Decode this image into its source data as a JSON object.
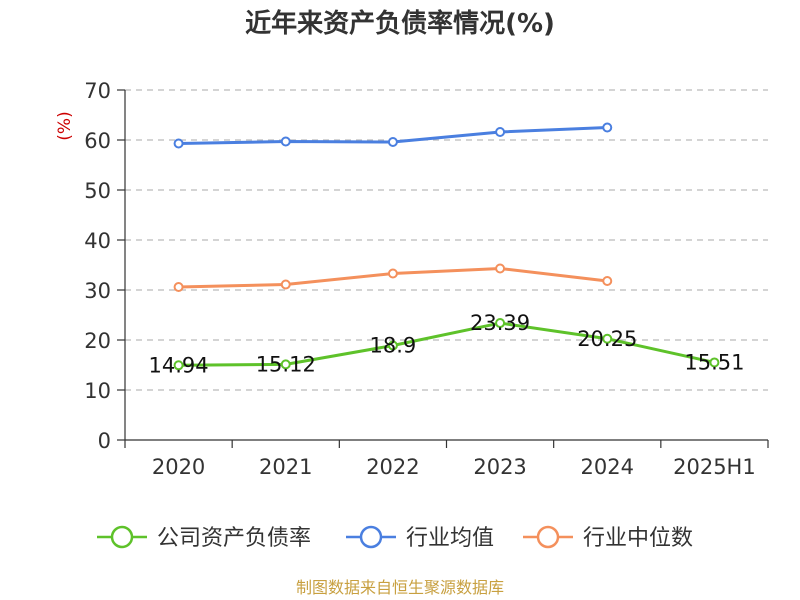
{
  "chart_data": {
    "type": "line",
    "title": "近年来资产负债率情况(%)",
    "ylabel": "(%)",
    "xlabel": "",
    "categories": [
      "2020",
      "2021",
      "2022",
      "2023",
      "2024",
      "2025H1"
    ],
    "ylim": [
      0,
      70
    ],
    "yticks": [
      0,
      10,
      20,
      30,
      40,
      50,
      60,
      70
    ],
    "grid": "horizontal-dashed",
    "legend_position": "bottom",
    "series": [
      {
        "name": "公司资产负债率",
        "color": "#5ec22a",
        "values": [
          14.94,
          15.12,
          18.9,
          23.39,
          20.25,
          15.51
        ],
        "labels": [
          "14.94",
          "15.12",
          "18.9",
          "23.39",
          "20.25",
          "15.51"
        ]
      },
      {
        "name": "行业均值",
        "color": "#4a7fe0",
        "values": [
          59.3,
          59.7,
          59.6,
          61.6,
          62.5,
          null
        ]
      },
      {
        "name": "行业中位数",
        "color": "#f4905c",
        "values": [
          30.6,
          31.1,
          33.3,
          34.3,
          31.8,
          null
        ]
      }
    ]
  },
  "footer": {
    "source": "制图数据来自恒生聚源数据库"
  }
}
